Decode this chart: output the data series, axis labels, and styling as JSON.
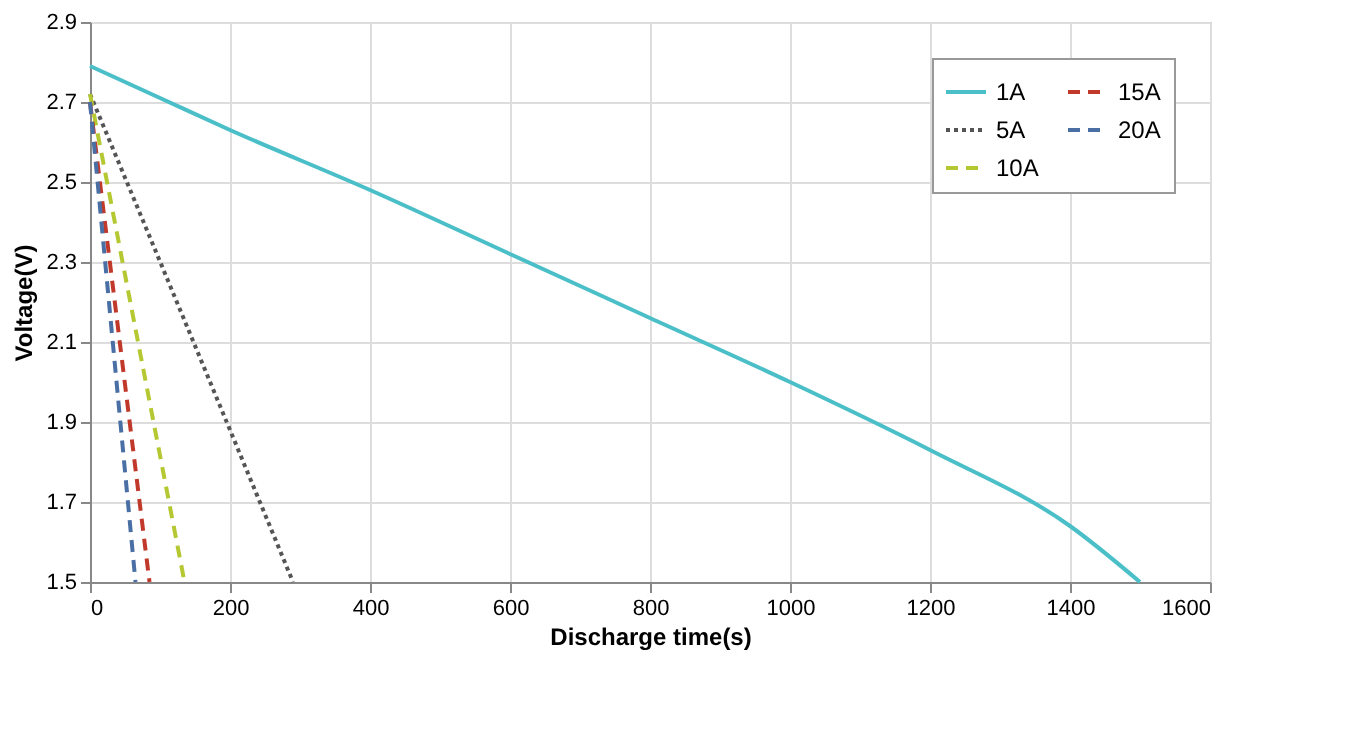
{
  "chart_data": {
    "type": "line",
    "xlabel": "Discharge time(s)",
    "ylabel": "Voltage(V)",
    "xlim": [
      0,
      1600
    ],
    "xticks": [
      0,
      200,
      400,
      600,
      800,
      1000,
      1200,
      1400,
      1600
    ],
    "ylim": [
      1.5,
      2.9
    ],
    "yticks": [
      1.5,
      1.7,
      1.9,
      2.1,
      2.3,
      2.5,
      2.7,
      2.9
    ],
    "grid": true,
    "legend": "top right",
    "marker": "none",
    "series": [
      {
        "name": "1A",
        "color": "#4bbfc8",
        "line_style": "solid",
        "x": [
          0,
          100,
          200,
          400,
          600,
          800,
          1000,
          1200,
          1400,
          1500
        ],
        "values": [
          2.79,
          2.71,
          2.63,
          2.48,
          2.32,
          2.16,
          2.0,
          1.83,
          1.64,
          1.5
        ]
      },
      {
        "name": "5A",
        "color": "#555555",
        "line_style": "dotted",
        "x": [
          0,
          55,
          200,
          290
        ],
        "values": [
          2.72,
          2.49,
          1.88,
          1.5
        ]
      },
      {
        "name": "10A",
        "color": "#b5c832",
        "line_style": "dashed",
        "x": [
          0,
          135
        ],
        "values": [
          2.72,
          1.5
        ]
      },
      {
        "name": "15A",
        "color": "#c0392b",
        "line_style": "dashed",
        "x": [
          0,
          85
        ],
        "values": [
          2.7,
          1.5
        ]
      },
      {
        "name": "20A",
        "color": "#4a6fa5",
        "line_style": "dashed",
        "x": [
          0,
          65
        ],
        "values": [
          2.7,
          1.5
        ]
      }
    ]
  }
}
